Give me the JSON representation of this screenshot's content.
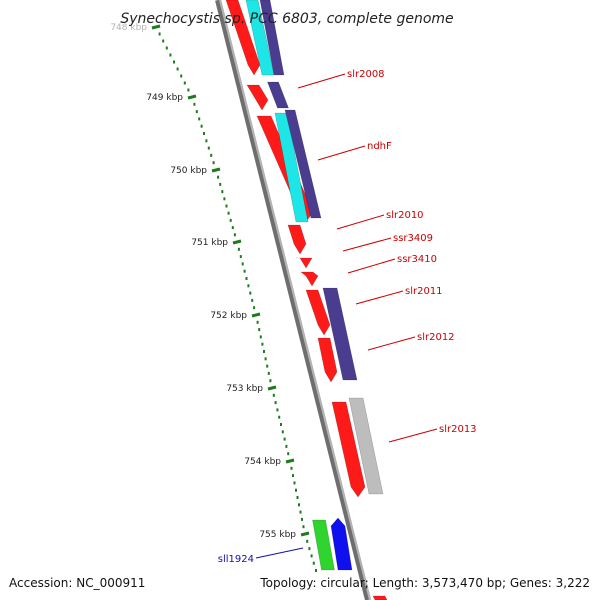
{
  "title": "Synechocystis sp. PCC 6803, complete genome",
  "footer": {
    "accession": "Accession: NC_000911",
    "topology": "Topology: circular; Length: 3,573,470 bp; Genes: 3,222"
  },
  "colors": {
    "backbone": "#8c8c8c",
    "ruler": "#1f7a1f",
    "forward_red": "#ff1a1a",
    "forward_cyan": "#1ee6e6",
    "forward_purple": "#4a3d8f",
    "grey_feature": "#bdbdbd",
    "reverse_green": "#2fd42f",
    "reverse_blue": "#1010ee",
    "label_red": "#cc0000",
    "label_blue": "#1010aa"
  },
  "ticks": [
    {
      "label": "748 kbp"
    },
    {
      "label": "749 kbp"
    },
    {
      "label": "750 kbp"
    },
    {
      "label": "751 kbp"
    },
    {
      "label": "752 kbp"
    },
    {
      "label": "753 kbp"
    },
    {
      "label": "754 kbp"
    },
    {
      "label": "755 kbp"
    }
  ],
  "gene_labels": [
    {
      "text": "slr2008",
      "strand": "forward"
    },
    {
      "text": "ndhF",
      "strand": "forward"
    },
    {
      "text": "slr2010",
      "strand": "forward"
    },
    {
      "text": "ssr3409",
      "strand": "forward"
    },
    {
      "text": "ssr3410",
      "strand": "forward"
    },
    {
      "text": "slr2011",
      "strand": "forward"
    },
    {
      "text": "slr2012",
      "strand": "forward"
    },
    {
      "text": "slr2013",
      "strand": "forward"
    },
    {
      "text": "sll1924",
      "strand": "reverse"
    }
  ]
}
